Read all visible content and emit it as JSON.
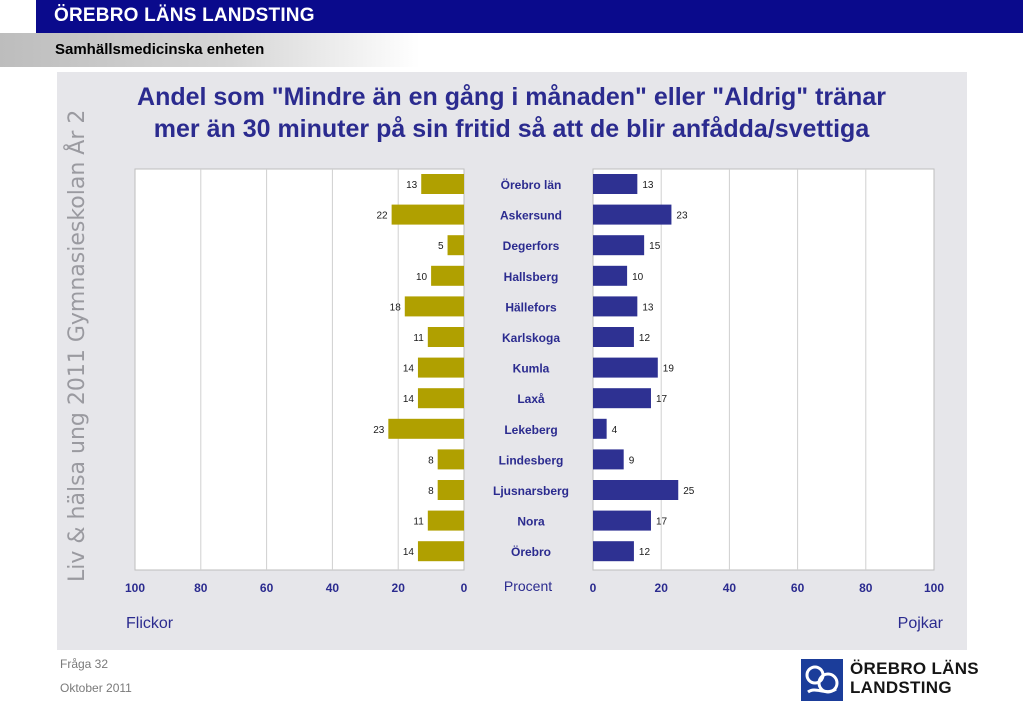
{
  "header": {
    "org": "ÖREBRO LÄNS LANDSTING",
    "unit": "Samhällsmedicinska enheten"
  },
  "side_text": "Liv & hälsa ung 2011 Gymnasieskolan År 2",
  "footer": {
    "question": "Fråga 32",
    "date": "Oktober 2011"
  },
  "logo": {
    "line1": "ÖREBRO LÄNS",
    "line2": "LANDSTING"
  },
  "chart_data": {
    "type": "bar",
    "orientation": "horizontal-butterfly",
    "title": [
      "Andel som \"Mindre än en gång i månaden\" eller \"Aldrig\" tränar",
      "mer än 30 minuter på sin fritid så att de blir anfådda/svettiga"
    ],
    "categories": [
      "Örebro län",
      "Askersund",
      "Degerfors",
      "Hallsberg",
      "Hällefors",
      "Karlskoga",
      "Kumla",
      "Laxå",
      "Lekeberg",
      "Lindesberg",
      "Ljusnarsberg",
      "Nora",
      "Örebro"
    ],
    "series": [
      {
        "name": "Flickor",
        "color": "#b0a000",
        "values": [
          13,
          22,
          5,
          10,
          18,
          11,
          14,
          14,
          23,
          8,
          8,
          11,
          14
        ]
      },
      {
        "name": "Pojkar",
        "color": "#2e3192",
        "values": [
          13,
          23,
          15,
          10,
          13,
          12,
          19,
          17,
          4,
          9,
          25,
          17,
          12
        ]
      }
    ],
    "xlim": [
      0,
      100
    ],
    "xticks": [
      "100",
      "80",
      "60",
      "40",
      "20",
      "0"
    ],
    "xticks_right": [
      "0",
      "20",
      "40",
      "60",
      "80",
      "100"
    ],
    "xlabel": "Procent",
    "grid": true,
    "colors": {
      "title": "#2b2b8f",
      "category_label": "#2b2b8f",
      "panel": "#e6e6ea",
      "plot": "#ffffff",
      "header": "#0a0a8c"
    }
  }
}
